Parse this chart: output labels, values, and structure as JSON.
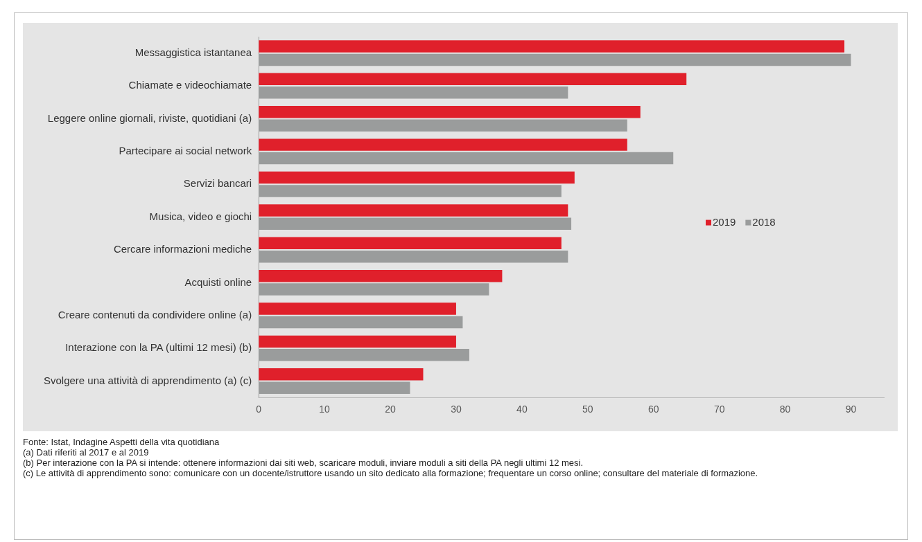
{
  "chart_data": {
    "type": "bar",
    "orientation": "horizontal",
    "categories": [
      "Messaggistica istantanea",
      "Chiamate e videochiamate",
      "Leggere online giornali, riviste, quotidiani (a)",
      "Partecipare ai social network",
      "Servizi bancari",
      "Musica, video e giochi",
      "Cercare informazioni mediche",
      "Acquisti online",
      "Creare contenuti da condividere online (a)",
      "Interazione con la PA (ultimi 12 mesi) (b)",
      "Svolgere una attività di apprendimento (a) (c)"
    ],
    "series": [
      {
        "name": "2019",
        "color": "#e0202b",
        "values": [
          89,
          65,
          58,
          56,
          48,
          47,
          46,
          37,
          30,
          30,
          25
        ]
      },
      {
        "name": "2018",
        "color": "#9a9c9c",
        "values": [
          90,
          47,
          56,
          63,
          46,
          47.5,
          47,
          35,
          31,
          32,
          23
        ]
      }
    ],
    "xlim": [
      0,
      95
    ],
    "xticks": [
      0,
      10,
      20,
      30,
      40,
      50,
      60,
      70,
      80,
      90
    ],
    "grid": false,
    "legend": "right",
    "annotations": [
      "Fonte: Istat, Indagine Aspetti della vita quotidiana",
      "(a) Dati riferiti al 2017 e al 2019",
      "(b) Per interazione con la PA si intende: ottenere informazioni dai siti web, scaricare moduli, inviare moduli a siti della PA negli ultimi 12 mesi.",
      "(c) Le attività di apprendimento sono: comunicare con un docente/istruttore usando un sito dedicato alla formazione; frequentare un corso online; consultare del materiale di formazione."
    ]
  }
}
